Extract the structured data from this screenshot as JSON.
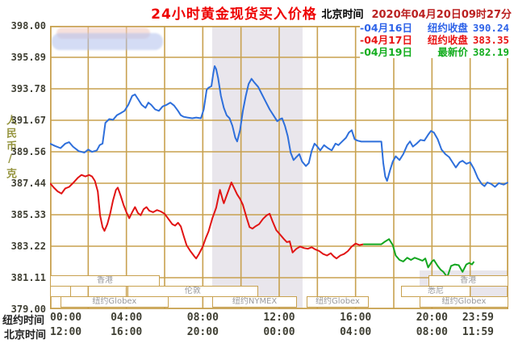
{
  "header": {
    "title": "24小时黄金现货买入价格",
    "clock_label": "北京时间",
    "clock_value": "2020年04月20日09时27分"
  },
  "y_axis": {
    "unit": "人民币/克",
    "ticks": [
      "398.00",
      "395.89",
      "393.78",
      "391.67",
      "389.56",
      "387.44",
      "385.33",
      "383.22",
      "381.11",
      "379.00"
    ]
  },
  "x_axis": {
    "ny_label": "纽约时间",
    "bj_label": "北京时间",
    "ny_ticks": [
      "00:00",
      "04:00",
      "08:00",
      "12:00",
      "16:00",
      "20:00",
      "23:59"
    ],
    "bj_ticks": [
      "12:00",
      "16:00",
      "20:00",
      "00:00",
      "04:00",
      "08:00",
      "11:59"
    ]
  },
  "legend": {
    "entries": [
      {
        "date": "-04月16日",
        "name": "纽约收盘",
        "value": "390.24",
        "color": "#2e63e8"
      },
      {
        "date": "-04月17日",
        "name": "纽约收盘",
        "value": "383.35",
        "color": "#e81414"
      },
      {
        "date": "-04月19日",
        "name": "最新价",
        "value": "382.19",
        "color": "#13ad1f"
      }
    ]
  },
  "sessions": {
    "rows": [
      [
        {
          "label": "香港",
          "start_h": 0.0,
          "end_h": 5.75
        },
        {
          "label": "香港",
          "start_h": 19.8,
          "end_h": 24.0
        }
      ],
      [
        {
          "label": "",
          "start_h": 0.0,
          "end_h": 1.1
        },
        {
          "label": "伦敦",
          "start_h": 4.05,
          "end_h": 10.9
        },
        {
          "label": "悉尼",
          "start_h": 18.4,
          "end_h": 22.0
        }
      ],
      [
        {
          "label": "纽约Globex",
          "start_h": 0.55,
          "end_h": 6.2
        },
        {
          "label": "纽约NYMEX",
          "start_h": 8.5,
          "end_h": 12.93
        },
        {
          "label": "纽约Globex",
          "start_h": 13.43,
          "end_h": 16.7
        },
        {
          "label": "纽约Globex",
          "start_h": 19.35,
          "end_h": 24.0
        }
      ]
    ]
  },
  "shading": {
    "band_start_h": 8.5,
    "band_end_h": 13.22,
    "corner_start_h": 19.35,
    "corner_end_h": 24.0,
    "corner_top": 303,
    "corner_height": 46
  },
  "colors": {
    "grid": "#c8a14f",
    "band": "#e9e6ec",
    "title_red": "#ee0000",
    "clock_red": "#bb2222",
    "axis_text": "#3f3f33",
    "session_text": "#98989a",
    "unit_text": "#96953f",
    "blue": "#2e6fdb",
    "red": "#e11414",
    "green": "#13a61f"
  },
  "chart_data": {
    "type": "line",
    "title": "24小时黄金现货买入价格",
    "xlabel": "纽约时间 (小时)",
    "ylabel": "人民币/克",
    "xlim": [
      0,
      24
    ],
    "ylim": [
      379.0,
      398.0
    ],
    "grid": true,
    "legend_position": "top-right",
    "series": [
      {
        "name": "04月16日 纽约收盘 390.24",
        "color": "#2e6fdb",
        "points": [
          [
            0,
            390.1
          ],
          [
            0.25,
            389.95
          ],
          [
            0.55,
            389.8
          ],
          [
            0.8,
            390.1
          ],
          [
            1,
            390.2
          ],
          [
            1.2,
            389.9
          ],
          [
            1.5,
            389.6
          ],
          [
            1.8,
            389.5
          ],
          [
            2,
            389.7
          ],
          [
            2.2,
            389.55
          ],
          [
            2.45,
            389.65
          ],
          [
            2.6,
            390
          ],
          [
            2.75,
            390.1
          ],
          [
            2.9,
            391.5
          ],
          [
            3.1,
            391.75
          ],
          [
            3.3,
            391.7
          ],
          [
            3.5,
            392
          ],
          [
            3.7,
            392.15
          ],
          [
            3.9,
            392.3
          ],
          [
            4.1,
            392.7
          ],
          [
            4.3,
            393.3
          ],
          [
            4.45,
            393.4
          ],
          [
            4.6,
            393.1
          ],
          [
            4.8,
            392.7
          ],
          [
            5,
            392.5
          ],
          [
            5.15,
            392.85
          ],
          [
            5.3,
            392.7
          ],
          [
            5.5,
            392.4
          ],
          [
            5.7,
            392.3
          ],
          [
            5.9,
            392.6
          ],
          [
            6.1,
            392.7
          ],
          [
            6.3,
            392.85
          ],
          [
            6.5,
            392.65
          ],
          [
            6.7,
            392.3
          ],
          [
            6.85,
            392
          ],
          [
            7,
            391.9
          ],
          [
            7.2,
            391.85
          ],
          [
            7.45,
            391.8
          ],
          [
            7.65,
            391.85
          ],
          [
            7.9,
            391.8
          ],
          [
            8.05,
            392.4
          ],
          [
            8.2,
            393.7
          ],
          [
            8.3,
            393.85
          ],
          [
            8.45,
            393.95
          ],
          [
            8.55,
            394.8
          ],
          [
            8.62,
            395.3
          ],
          [
            8.7,
            395.1
          ],
          [
            8.8,
            394.5
          ],
          [
            8.95,
            393.3
          ],
          [
            9.1,
            392.5
          ],
          [
            9.25,
            392
          ],
          [
            9.4,
            391.8
          ],
          [
            9.55,
            391.3
          ],
          [
            9.7,
            390.5
          ],
          [
            9.8,
            390.25
          ],
          [
            9.95,
            391
          ],
          [
            10.1,
            392.3
          ],
          [
            10.25,
            393.3
          ],
          [
            10.4,
            394.1
          ],
          [
            10.55,
            394.45
          ],
          [
            10.7,
            394.2
          ],
          [
            10.9,
            393.9
          ],
          [
            11.1,
            393.4
          ],
          [
            11.3,
            392.9
          ],
          [
            11.5,
            392.4
          ],
          [
            11.7,
            392
          ],
          [
            11.9,
            391.6
          ],
          [
            12.05,
            391.75
          ],
          [
            12.15,
            391.8
          ],
          [
            12.3,
            391.3
          ],
          [
            12.45,
            390.6
          ],
          [
            12.6,
            389.5
          ],
          [
            12.75,
            389
          ],
          [
            12.9,
            389.2
          ],
          [
            13.05,
            389.4
          ],
          [
            13.2,
            388.9
          ],
          [
            13.4,
            388.6
          ],
          [
            13.55,
            388.8
          ],
          [
            13.7,
            389.6
          ],
          [
            13.85,
            390.1
          ],
          [
            14,
            389.9
          ],
          [
            14.15,
            389.65
          ],
          [
            14.35,
            390
          ],
          [
            14.55,
            389.8
          ],
          [
            14.75,
            389.65
          ],
          [
            14.95,
            390.1
          ],
          [
            15.1,
            390
          ],
          [
            15.3,
            390.25
          ],
          [
            15.5,
            390.5
          ],
          [
            15.65,
            390.85
          ],
          [
            15.8,
            391
          ],
          [
            15.95,
            390.4
          ],
          [
            16.1,
            390.3
          ],
          [
            16.3,
            390.24
          ],
          [
            17.35,
            390.24
          ],
          [
            17.45,
            388.8
          ],
          [
            17.55,
            387.9
          ],
          [
            17.65,
            387.6
          ],
          [
            17.8,
            388.3
          ],
          [
            17.95,
            388.9
          ],
          [
            18.1,
            389.25
          ],
          [
            18.3,
            389
          ],
          [
            18.5,
            389.4
          ],
          [
            18.7,
            390
          ],
          [
            18.85,
            390.25
          ],
          [
            19,
            389.9
          ],
          [
            19.2,
            390.1
          ],
          [
            19.4,
            390.35
          ],
          [
            19.6,
            390.3
          ],
          [
            19.8,
            390.7
          ],
          [
            19.95,
            390.95
          ],
          [
            20.1,
            390.85
          ],
          [
            20.3,
            390.4
          ],
          [
            20.5,
            389.7
          ],
          [
            20.7,
            389.4
          ],
          [
            20.9,
            389.2
          ],
          [
            21.1,
            388.8
          ],
          [
            21.25,
            388.5
          ],
          [
            21.45,
            388.85
          ],
          [
            21.6,
            388.95
          ],
          [
            21.8,
            388.75
          ],
          [
            22,
            388.85
          ],
          [
            22.2,
            388.4
          ],
          [
            22.4,
            387.8
          ],
          [
            22.6,
            387.4
          ],
          [
            22.75,
            387.25
          ],
          [
            22.9,
            387.5
          ],
          [
            23.1,
            387.4
          ],
          [
            23.3,
            387.2
          ],
          [
            23.5,
            387.45
          ],
          [
            23.75,
            387.35
          ],
          [
            23.98,
            387.5
          ]
        ]
      },
      {
        "name": "04月17日 纽约收盘 383.35",
        "color": "#e11414",
        "points": [
          [
            0,
            387.45
          ],
          [
            0.2,
            387.15
          ],
          [
            0.4,
            386.9
          ],
          [
            0.6,
            386.75
          ],
          [
            0.8,
            387.1
          ],
          [
            1,
            387.2
          ],
          [
            1.2,
            387.45
          ],
          [
            1.45,
            387.8
          ],
          [
            1.65,
            388
          ],
          [
            1.85,
            387.9
          ],
          [
            2.05,
            388
          ],
          [
            2.2,
            387.9
          ],
          [
            2.35,
            387.6
          ],
          [
            2.5,
            386.9
          ],
          [
            2.62,
            385.3
          ],
          [
            2.75,
            384.5
          ],
          [
            2.85,
            384.25
          ],
          [
            3,
            384.7
          ],
          [
            3.15,
            385.4
          ],
          [
            3.3,
            386.3
          ],
          [
            3.45,
            387
          ],
          [
            3.55,
            387.15
          ],
          [
            3.7,
            386.6
          ],
          [
            3.85,
            386
          ],
          [
            4,
            385.5
          ],
          [
            4.15,
            385.1
          ],
          [
            4.3,
            385.5
          ],
          [
            4.45,
            385.85
          ],
          [
            4.6,
            385.45
          ],
          [
            4.75,
            385.3
          ],
          [
            4.9,
            385.7
          ],
          [
            5.05,
            385.85
          ],
          [
            5.2,
            385.6
          ],
          [
            5.4,
            385.5
          ],
          [
            5.6,
            385.65
          ],
          [
            5.8,
            385.55
          ],
          [
            6,
            385.4
          ],
          [
            6.2,
            385.05
          ],
          [
            6.4,
            384.7
          ],
          [
            6.55,
            384.6
          ],
          [
            6.7,
            384.8
          ],
          [
            6.85,
            384.55
          ],
          [
            7,
            383.9
          ],
          [
            7.15,
            383.3
          ],
          [
            7.35,
            382.9
          ],
          [
            7.55,
            382.55
          ],
          [
            7.65,
            382.4
          ],
          [
            7.8,
            382.7
          ],
          [
            8,
            383.2
          ],
          [
            8.15,
            383.75
          ],
          [
            8.3,
            384.2
          ],
          [
            8.5,
            385.1
          ],
          [
            8.7,
            385.8
          ],
          [
            8.9,
            387
          ],
          [
            9.05,
            386.3
          ],
          [
            9.1,
            386.1
          ],
          [
            9.3,
            386.8
          ],
          [
            9.5,
            387.5
          ],
          [
            9.65,
            387.1
          ],
          [
            9.8,
            386.7
          ],
          [
            9.95,
            386.4
          ],
          [
            10.1,
            386
          ],
          [
            10.3,
            385.1
          ],
          [
            10.45,
            384.5
          ],
          [
            10.6,
            384.4
          ],
          [
            10.75,
            384.55
          ],
          [
            10.95,
            384.7
          ],
          [
            11.15,
            385.05
          ],
          [
            11.35,
            385.3
          ],
          [
            11.5,
            385.4
          ],
          [
            11.65,
            384.9
          ],
          [
            11.85,
            384.3
          ],
          [
            12.05,
            384
          ],
          [
            12.25,
            383.7
          ],
          [
            12.4,
            383.5
          ],
          [
            12.55,
            383.55
          ],
          [
            12.7,
            382.8
          ],
          [
            12.9,
            383.05
          ],
          [
            13.1,
            383.2
          ],
          [
            13.3,
            383.1
          ],
          [
            13.5,
            383.05
          ],
          [
            13.7,
            383.15
          ],
          [
            13.9,
            383
          ],
          [
            14.1,
            382.9
          ],
          [
            14.3,
            382.7
          ],
          [
            14.5,
            382.6
          ],
          [
            14.7,
            382.75
          ],
          [
            14.85,
            382.55
          ],
          [
            15,
            382.4
          ],
          [
            15.2,
            382.6
          ],
          [
            15.4,
            382.7
          ],
          [
            15.6,
            382.9
          ],
          [
            15.8,
            383.2
          ],
          [
            16,
            383.4
          ],
          [
            16.2,
            383.3
          ],
          [
            16.4,
            383.35
          ]
        ]
      },
      {
        "name": "04月19日 最新价 382.19",
        "color": "#13a61f",
        "points": [
          [
            16.4,
            383.35
          ],
          [
            17.35,
            383.35
          ],
          [
            17.5,
            383.5
          ],
          [
            17.75,
            383.7
          ],
          [
            17.95,
            383.3
          ],
          [
            18.1,
            382.6
          ],
          [
            18.3,
            382.3
          ],
          [
            18.5,
            382.2
          ],
          [
            18.7,
            382.45
          ],
          [
            18.9,
            382.3
          ],
          [
            19.1,
            382.45
          ],
          [
            19.3,
            382.35
          ],
          [
            19.5,
            382.25
          ],
          [
            19.65,
            382.4
          ],
          [
            19.8,
            381.8
          ],
          [
            20,
            382.2
          ],
          [
            20.1,
            382.3
          ],
          [
            20.3,
            381.9
          ],
          [
            20.45,
            381.65
          ],
          [
            20.6,
            381.5
          ],
          [
            20.8,
            381.15
          ],
          [
            21,
            381.9
          ],
          [
            21.2,
            382
          ],
          [
            21.4,
            381.95
          ],
          [
            21.6,
            381.5
          ],
          [
            21.8,
            382
          ],
          [
            21.95,
            382.1
          ],
          [
            22.1,
            382
          ],
          [
            22.2,
            382.19
          ]
        ]
      }
    ]
  }
}
